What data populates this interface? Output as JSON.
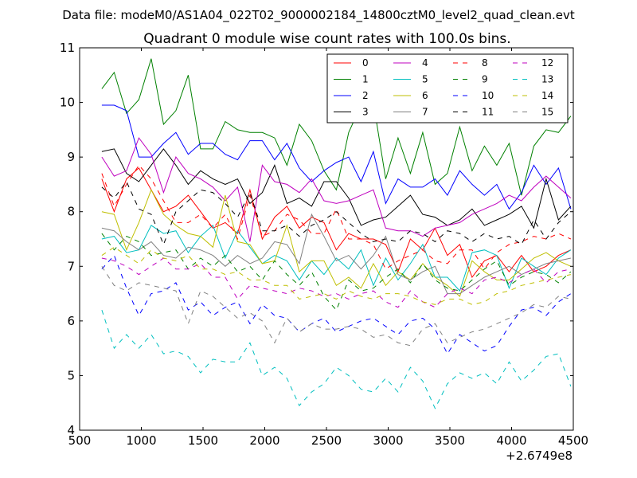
{
  "suptitle": "Data file: modeM0/AS1A04_022T02_9000002184_14800cztM0_level2_quad_clean.evt",
  "chart_data": {
    "type": "line",
    "title": "Quadrant 0 module wise count rates with 100.0s bins.",
    "xlabel": "",
    "ylabel": "",
    "xlim": [
      500,
      4500
    ],
    "ylim": [
      4,
      11
    ],
    "x_offset_label": "+2.6749e8",
    "x_ticks": [
      500,
      1000,
      1500,
      2000,
      2500,
      3000,
      3500,
      4000,
      4500
    ],
    "x_tick_labels": [
      "500",
      "1000",
      "1500",
      "2000",
      "2500",
      "3000",
      "3500",
      "4000",
      "4500"
    ],
    "y_ticks": [
      4,
      5,
      6,
      7,
      8,
      9,
      10,
      11
    ],
    "y_tick_labels": [
      "4",
      "5",
      "6",
      "7",
      "8",
      "9",
      "10",
      "11"
    ],
    "grid": false,
    "legend_position": "top-right",
    "legend_columns": 4,
    "x": [
      680,
      780,
      880,
      980,
      1080,
      1180,
      1280,
      1380,
      1480,
      1580,
      1680,
      1780,
      1880,
      1980,
      2080,
      2180,
      2280,
      2380,
      2480,
      2580,
      2680,
      2780,
      2880,
      2980,
      3080,
      3180,
      3280,
      3380,
      3480,
      3580,
      3680,
      3780,
      3880,
      3980,
      4080,
      4180,
      4280,
      4380,
      4480
    ],
    "series": [
      {
        "name": "0",
        "color": "#ff0000",
        "style": "solid",
        "values": [
          8.6,
          8.0,
          8.6,
          8.8,
          8.4,
          8.0,
          8.1,
          8.3,
          8.0,
          7.7,
          7.8,
          7.6,
          8.4,
          7.5,
          7.9,
          8.1,
          7.7,
          7.9,
          7.8,
          7.3,
          7.6,
          7.5,
          7.5,
          7.4,
          6.9,
          7.5,
          7.3,
          7.7,
          7.2,
          7.4,
          6.8,
          7.1,
          7.2,
          6.9,
          7.2,
          6.9,
          7.0,
          7.2,
          7.3
        ]
      },
      {
        "name": "1",
        "color": "#008000",
        "style": "solid",
        "values": [
          10.25,
          10.55,
          9.8,
          10.05,
          10.8,
          9.6,
          9.85,
          10.5,
          9.15,
          9.15,
          9.65,
          9.5,
          9.45,
          9.45,
          9.35,
          8.85,
          9.6,
          9.3,
          8.75,
          8.4,
          9.45,
          9.95,
          10.0,
          8.6,
          9.35,
          8.7,
          9.45,
          8.5,
          8.7,
          9.55,
          8.75,
          9.2,
          8.85,
          9.25,
          8.3,
          9.2,
          9.5,
          9.45,
          9.75
        ]
      },
      {
        "name": "2",
        "color": "#0000ff",
        "style": "solid",
        "values": [
          9.95,
          9.95,
          9.85,
          9.0,
          9.0,
          9.25,
          9.45,
          9.05,
          9.25,
          9.25,
          9.05,
          8.95,
          9.3,
          9.3,
          8.95,
          9.25,
          8.8,
          8.55,
          8.75,
          8.9,
          9.0,
          8.55,
          9.1,
          8.15,
          8.6,
          8.45,
          8.45,
          8.6,
          8.3,
          8.75,
          8.5,
          8.3,
          8.5,
          8.05,
          8.35,
          8.85,
          8.5,
          8.8,
          8.05
        ]
      },
      {
        "name": "3",
        "color": "#000000",
        "style": "solid",
        "values": [
          9.1,
          9.15,
          8.7,
          8.55,
          8.85,
          9.15,
          8.85,
          8.5,
          8.75,
          8.6,
          8.5,
          8.6,
          8.15,
          8.35,
          8.85,
          8.15,
          8.25,
          8.1,
          8.55,
          8.55,
          8.25,
          7.75,
          7.85,
          7.9,
          8.1,
          8.3,
          7.95,
          7.9,
          7.75,
          7.85,
          8.05,
          7.75,
          7.85,
          7.95,
          8.1,
          7.7,
          8.6,
          7.85,
          8.1
        ]
      },
      {
        "name": "4",
        "color": "#bf00bf",
        "style": "solid",
        "values": [
          9.0,
          8.65,
          8.75,
          9.35,
          9.05,
          8.35,
          9.0,
          8.7,
          8.6,
          8.45,
          8.2,
          8.45,
          7.45,
          8.85,
          8.55,
          8.5,
          8.35,
          8.6,
          8.2,
          8.15,
          8.2,
          8.3,
          8.4,
          7.7,
          7.65,
          7.65,
          7.55,
          7.7,
          7.75,
          7.8,
          7.95,
          8.05,
          8.15,
          8.3,
          8.2,
          8.45,
          8.65,
          8.45,
          8.25
        ]
      },
      {
        "name": "5",
        "color": "#00bfbf",
        "style": "solid",
        "values": [
          7.5,
          7.55,
          7.25,
          7.3,
          7.75,
          7.6,
          7.65,
          7.25,
          7.55,
          7.75,
          7.15,
          7.65,
          7.35,
          7.05,
          7.2,
          7.1,
          6.75,
          7.1,
          6.85,
          7.15,
          6.95,
          7.3,
          6.65,
          7.15,
          6.75,
          7.05,
          7.4,
          6.8,
          6.8,
          6.55,
          7.25,
          7.3,
          7.2,
          6.6,
          7.15,
          7.0,
          6.85,
          7.15,
          7.3
        ]
      },
      {
        "name": "6",
        "color": "#bfbf00",
        "style": "solid",
        "values": [
          8.0,
          7.95,
          7.3,
          7.8,
          8.4,
          7.95,
          7.75,
          7.6,
          7.55,
          7.35,
          8.3,
          7.45,
          7.4,
          7.05,
          7.1,
          7.75,
          6.9,
          7.1,
          7.1,
          6.65,
          6.8,
          6.6,
          7.05,
          6.65,
          6.9,
          6.75,
          7.05,
          6.8,
          6.65,
          6.45,
          7.1,
          6.9,
          6.75,
          6.75,
          6.95,
          7.15,
          7.25,
          7.1,
          7.0
        ]
      },
      {
        "name": "7",
        "color": "#808080",
        "style": "solid",
        "values": [
          7.7,
          7.65,
          7.45,
          7.3,
          7.45,
          7.2,
          7.15,
          7.35,
          7.3,
          7.2,
          7.0,
          7.2,
          7.05,
          7.15,
          7.45,
          7.4,
          7.05,
          7.95,
          7.55,
          7.1,
          7.2,
          6.95,
          7.2,
          7.55,
          6.85,
          6.75,
          6.9,
          7.0,
          6.5,
          6.5,
          6.65,
          6.8,
          6.9,
          7.0,
          6.85,
          6.95,
          7.05,
          7.1,
          7.15
        ]
      },
      {
        "name": "8",
        "color": "#ff0000",
        "style": "dashed",
        "values": [
          8.7,
          8.1,
          8.5,
          8.85,
          8.6,
          8.2,
          7.8,
          7.8,
          7.95,
          7.7,
          7.95,
          7.5,
          8.3,
          7.55,
          7.65,
          7.95,
          7.85,
          7.6,
          7.6,
          8.05,
          7.5,
          7.5,
          7.4,
          6.95,
          7.1,
          7.2,
          7.3,
          7.1,
          7.05,
          7.3,
          7.3,
          6.95,
          7.25,
          7.4,
          7.45,
          7.55,
          7.5,
          7.6,
          7.5
        ]
      },
      {
        "name": "9",
        "color": "#008000",
        "style": "dashed",
        "values": [
          7.6,
          7.3,
          7.55,
          7.45,
          7.2,
          7.25,
          7.3,
          6.95,
          7.15,
          7.0,
          7.2,
          6.9,
          7.0,
          6.75,
          7.1,
          6.85,
          6.65,
          6.9,
          6.45,
          6.2,
          6.75,
          6.55,
          6.6,
          6.8,
          6.95,
          6.7,
          7.05,
          6.75,
          6.6,
          6.55,
          6.75,
          6.95,
          7.1,
          6.65,
          6.8,
          6.9,
          6.85,
          6.7,
          6.9
        ]
      },
      {
        "name": "10",
        "color": "#0000ff",
        "style": "dashed",
        "values": [
          6.95,
          7.2,
          6.6,
          6.1,
          6.5,
          6.55,
          6.7,
          6.2,
          6.35,
          6.1,
          6.25,
          6.35,
          5.95,
          6.3,
          6.1,
          6.05,
          5.8,
          5.95,
          6.05,
          5.8,
          5.9,
          6.0,
          6.05,
          5.9,
          5.75,
          6.0,
          6.05,
          5.85,
          5.4,
          5.75,
          5.6,
          5.45,
          5.55,
          5.9,
          6.2,
          6.25,
          6.1,
          6.35,
          6.5
        ]
      },
      {
        "name": "11",
        "color": "#000000",
        "style": "dashed",
        "values": [
          8.45,
          8.25,
          8.55,
          8.05,
          7.95,
          7.4,
          8.0,
          8.2,
          8.4,
          8.35,
          8.15,
          7.9,
          8.35,
          7.65,
          7.65,
          7.75,
          7.55,
          7.75,
          7.85,
          8.0,
          7.8,
          7.6,
          7.45,
          7.5,
          7.45,
          7.65,
          7.6,
          7.45,
          7.65,
          7.6,
          7.45,
          7.6,
          7.5,
          7.55,
          7.4,
          7.85,
          7.5,
          7.8,
          8.0
        ]
      },
      {
        "name": "12",
        "color": "#bf00bf",
        "style": "dashed",
        "values": [
          7.15,
          7.1,
          7.0,
          6.85,
          7.0,
          7.15,
          6.95,
          6.95,
          7.05,
          6.8,
          6.8,
          6.4,
          6.65,
          6.6,
          6.55,
          6.5,
          6.6,
          6.55,
          6.45,
          6.5,
          6.4,
          6.5,
          6.55,
          6.35,
          6.25,
          6.55,
          6.35,
          6.25,
          6.5,
          6.6,
          6.5,
          6.75,
          6.8,
          6.7,
          6.85,
          6.95,
          6.7,
          6.9,
          6.95
        ]
      },
      {
        "name": "13",
        "color": "#00bfbf",
        "style": "dashed",
        "values": [
          6.2,
          5.5,
          5.75,
          5.5,
          5.75,
          5.4,
          5.45,
          5.35,
          5.05,
          5.3,
          5.25,
          5.25,
          5.6,
          5.0,
          5.15,
          4.95,
          4.45,
          4.7,
          4.85,
          5.15,
          5.0,
          4.75,
          4.7,
          4.95,
          4.7,
          5.15,
          4.9,
          4.4,
          4.85,
          5.05,
          4.95,
          5.05,
          4.85,
          5.25,
          4.9,
          5.1,
          5.35,
          5.4,
          4.8
        ]
      },
      {
        "name": "14",
        "color": "#bfbf00",
        "style": "dashed",
        "values": [
          7.2,
          7.35,
          7.2,
          7.05,
          7.3,
          7.15,
          7.1,
          7.2,
          6.95,
          6.95,
          6.85,
          6.9,
          6.75,
          6.75,
          6.65,
          6.65,
          6.4,
          6.45,
          6.5,
          6.4,
          6.55,
          6.45,
          6.4,
          6.5,
          6.5,
          6.45,
          6.35,
          6.3,
          6.4,
          6.4,
          6.3,
          6.35,
          6.5,
          6.55,
          6.65,
          6.7,
          6.75,
          6.8,
          6.85
        ]
      },
      {
        "name": "15",
        "color": "#808080",
        "style": "dashed",
        "values": [
          7.0,
          6.65,
          6.55,
          6.7,
          6.65,
          6.6,
          6.55,
          5.95,
          6.55,
          6.45,
          6.25,
          6.05,
          6.15,
          6.0,
          5.6,
          6.05,
          5.8,
          5.95,
          5.85,
          5.85,
          5.9,
          5.85,
          5.7,
          5.75,
          5.6,
          5.55,
          5.85,
          5.95,
          5.6,
          5.7,
          5.8,
          5.85,
          5.95,
          6.05,
          6.15,
          6.3,
          6.25,
          6.45,
          6.4
        ]
      }
    ]
  }
}
